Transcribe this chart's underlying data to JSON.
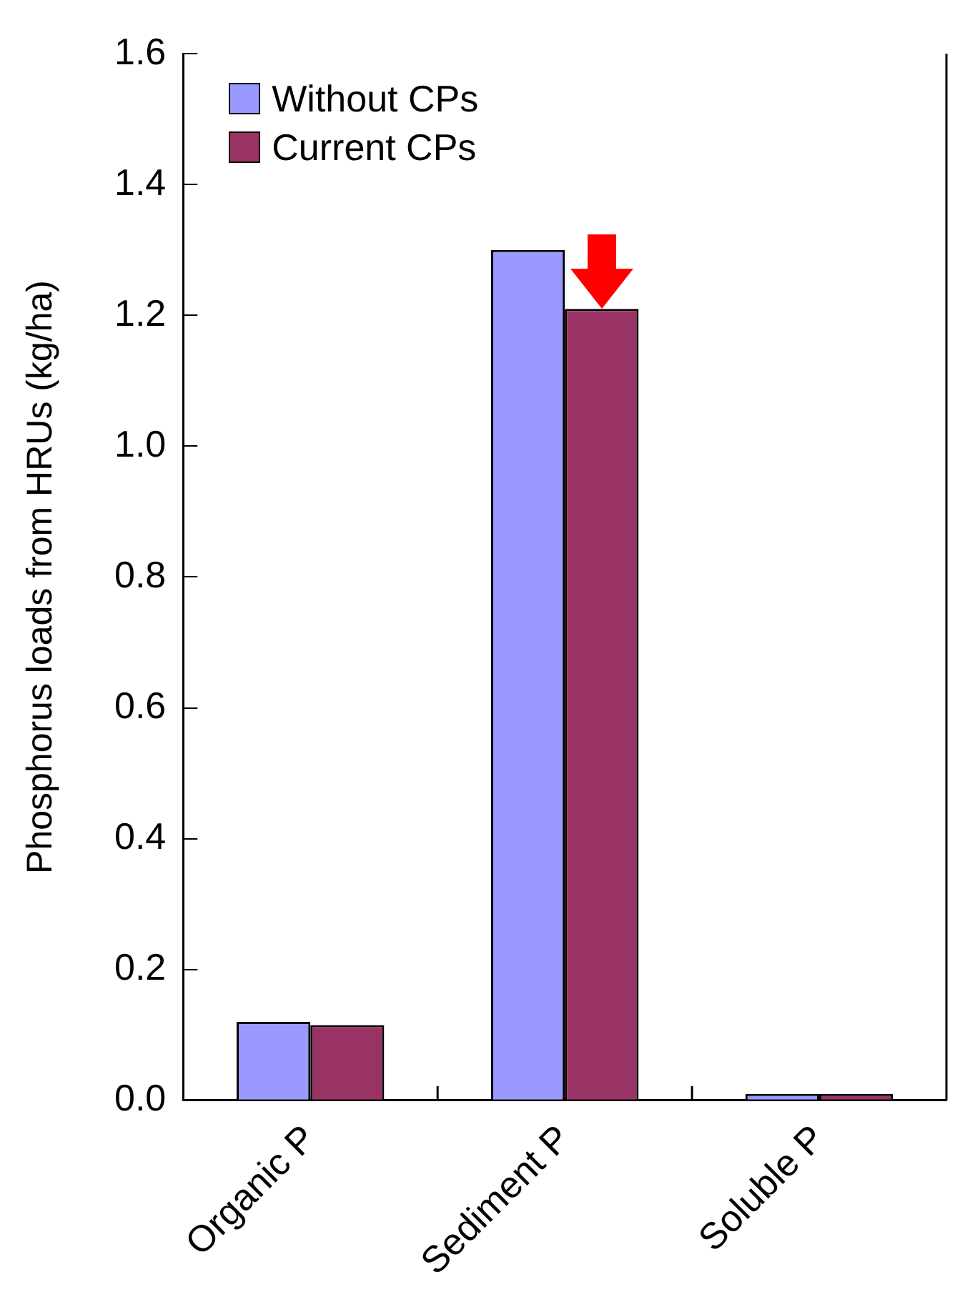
{
  "chart_data": {
    "type": "bar",
    "ylabel": "Phosphorus loads from HRUs (kg/ha)",
    "categories": [
      "Organic P",
      "Sediment P",
      "Soluble P"
    ],
    "series": [
      {
        "name": "Without CPs",
        "color": "#9999ff",
        "values": [
          0.12,
          1.3,
          0.01
        ]
      },
      {
        "name": "Current CPs",
        "color": "#993366",
        "values": [
          0.115,
          1.21,
          0.01
        ]
      }
    ],
    "ylim": [
      0,
      1.6
    ],
    "yticks": [
      {
        "value": 0,
        "label": "0.0"
      },
      {
        "value": 0.2,
        "label": "0.2"
      },
      {
        "value": 0.4,
        "label": "0.4"
      },
      {
        "value": 0.6,
        "label": "0.6"
      },
      {
        "value": 0.8,
        "label": "0.8"
      },
      {
        "value": 1,
        "label": "1.0"
      },
      {
        "value": 1.2,
        "label": "1.2"
      },
      {
        "value": 1.4,
        "label": "1.4"
      },
      {
        "value": 1.6,
        "label": "1.6"
      }
    ],
    "grid": false,
    "legend": "top left"
  }
}
